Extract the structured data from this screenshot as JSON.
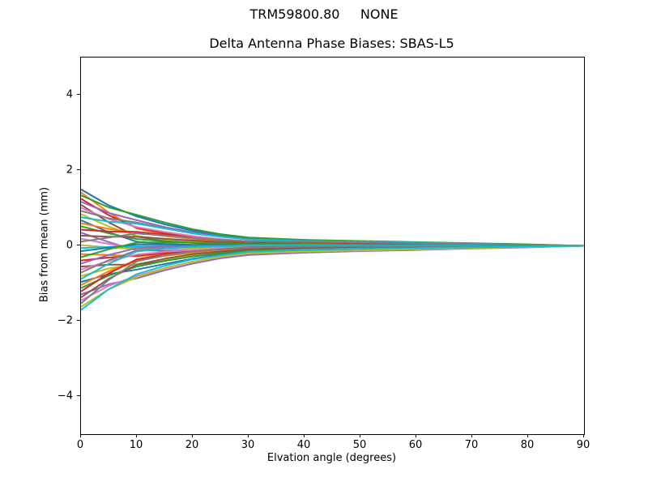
{
  "chart_data": {
    "type": "line",
    "suptitle": "TRM59800.80     NONE",
    "title": "Delta Antenna Phase Biases: SBAS-L5",
    "xlabel": "Elvation angle (degrees)",
    "ylabel": "Bias from mean (mm)",
    "xlim": [
      0,
      90
    ],
    "ylim": [
      -5,
      5
    ],
    "xticks": [
      0,
      10,
      20,
      30,
      40,
      50,
      60,
      70,
      80,
      90
    ],
    "yticks": [
      -4,
      -2,
      0,
      2,
      4
    ],
    "grid": false,
    "legend": "none",
    "background": "#ffffff",
    "text_color": "#000000",
    "line_width": 2,
    "palette": [
      "#1f77b4",
      "#ff7f0e",
      "#2ca02c",
      "#d62728",
      "#9467bd",
      "#8c564b",
      "#e377c2",
      "#7f7f7f",
      "#bcbd22",
      "#17becf"
    ],
    "x": [
      0,
      5,
      10,
      15,
      20,
      25,
      30,
      40,
      50,
      60,
      70,
      80,
      90
    ],
    "series": [
      {
        "color": "#1f77b4",
        "values": [
          1.5,
          1.07,
          0.78,
          0.57,
          0.4,
          0.28,
          0.19,
          0.12,
          0.12,
          0.08,
          0.05,
          0.02,
          0
        ]
      },
      {
        "color": "#ff7f0e",
        "values": [
          1.42,
          0.88,
          0.46,
          0.3,
          0.2,
          0.12,
          0.07,
          0.04,
          0.03,
          0.02,
          0.02,
          0.01,
          0
        ]
      },
      {
        "color": "#2ca02c",
        "values": [
          1.34,
          1.02,
          0.82,
          0.62,
          0.44,
          0.31,
          0.22,
          0.16,
          0.13,
          0.1,
          0.07,
          0.04,
          0
        ]
      },
      {
        "color": "#d62728",
        "values": [
          1.25,
          0.81,
          0.48,
          0.33,
          0.22,
          0.15,
          0.09,
          0.05,
          0.04,
          0.03,
          0.02,
          0.01,
          0
        ]
      },
      {
        "color": "#9467bd",
        "values": [
          1.17,
          0.87,
          0.68,
          0.5,
          0.36,
          0.25,
          0.17,
          0.11,
          0.08,
          0.07,
          0.05,
          0.02,
          0
        ]
      },
      {
        "color": "#8c564b",
        "values": [
          1.09,
          0.62,
          0.24,
          0.14,
          0.08,
          0.04,
          0.01,
          0.0,
          0.0,
          0.0,
          0.0,
          0.0,
          0
        ]
      },
      {
        "color": "#e377c2",
        "values": [
          1.01,
          0.71,
          0.5,
          0.37,
          0.26,
          0.18,
          0.12,
          0.07,
          0.06,
          0.04,
          0.03,
          0.02,
          0
        ]
      },
      {
        "color": "#7f7f7f",
        "values": [
          0.93,
          0.73,
          0.62,
          0.47,
          0.33,
          0.24,
          0.17,
          0.11,
          0.11,
          0.06,
          0.05,
          0.02,
          0
        ]
      },
      {
        "color": "#bcbd22",
        "values": [
          0.84,
          0.51,
          0.26,
          0.17,
          0.11,
          0.07,
          0.04,
          0.02,
          0.01,
          0.01,
          0.01,
          0.0,
          0
        ]
      },
      {
        "color": "#17becf",
        "values": [
          0.76,
          0.64,
          0.59,
          0.46,
          0.33,
          0.24,
          0.17,
          0.13,
          0.11,
          0.09,
          0.06,
          0.03,
          0
        ]
      },
      {
        "color": "#1f77b4",
        "values": [
          0.68,
          0.36,
          0.11,
          0.05,
          0.02,
          0.0,
          -0.01,
          -0.01,
          -0.01,
          -0.01,
          -0.01,
          0.0,
          0
        ]
      },
      {
        "color": "#ff7f0e",
        "values": [
          0.6,
          0.45,
          0.35,
          0.26,
          0.18,
          0.13,
          0.09,
          0.06,
          0.04,
          0.03,
          0.02,
          0.01,
          0
        ]
      },
      {
        "color": "#2ca02c",
        "values": [
          0.52,
          0.33,
          0.18,
          0.12,
          0.08,
          0.05,
          0.03,
          0.02,
          0.01,
          0.01,
          0.01,
          0.0,
          0
        ]
      },
      {
        "color": "#d62728",
        "values": [
          0.43,
          0.38,
          0.37,
          0.29,
          0.21,
          0.15,
          0.11,
          0.1,
          0.08,
          0.06,
          0.04,
          0.02,
          0
        ]
      },
      {
        "color": "#9467bd",
        "values": [
          0.35,
          0.1,
          -0.12,
          -0.13,
          -0.11,
          -0.09,
          -0.07,
          -0.05,
          -0.04,
          -0.03,
          -0.02,
          -0.01,
          0
        ]
      },
      {
        "color": "#8c564b",
        "values": [
          0.27,
          0.24,
          0.24,
          0.19,
          0.14,
          0.1,
          0.07,
          0.05,
          0.04,
          0.03,
          0.02,
          0.01,
          0
        ]
      },
      {
        "color": "#e377c2",
        "values": [
          0.19,
          0.05,
          -0.06,
          -0.07,
          -0.06,
          -0.05,
          -0.04,
          -0.03,
          -0.02,
          -0.02,
          -0.01,
          -0.01,
          0
        ]
      },
      {
        "color": "#7f7f7f",
        "values": [
          0.11,
          0.22,
          0.33,
          0.27,
          0.21,
          0.16,
          0.12,
          0.11,
          0.09,
          0.07,
          0.05,
          0.03,
          0
        ]
      },
      {
        "color": "#bcbd22",
        "values": [
          0.02,
          -0.04,
          -0.09,
          -0.08,
          -0.06,
          -0.05,
          -0.04,
          -0.03,
          -0.02,
          -0.02,
          -0.01,
          -0.01,
          0
        ]
      },
      {
        "color": "#17becf",
        "values": [
          -0.06,
          -0.03,
          -0.01,
          0.0,
          0.0,
          0.0,
          0.0,
          0.0,
          0.0,
          0.0,
          0.0,
          0.0,
          0
        ]
      },
      {
        "color": "#1f77b4",
        "values": [
          -0.14,
          -0.05,
          0.04,
          0.04,
          0.03,
          0.03,
          0.02,
          0.02,
          0.02,
          0.01,
          0.01,
          0.0,
          0
        ]
      },
      {
        "color": "#ff7f0e",
        "values": [
          -0.22,
          -0.24,
          -0.28,
          -0.22,
          -0.17,
          -0.12,
          -0.09,
          -0.06,
          -0.05,
          -0.04,
          -0.03,
          -0.01,
          0
        ]
      },
      {
        "color": "#2ca02c",
        "values": [
          -0.3,
          -0.09,
          0.09,
          0.09,
          0.08,
          0.07,
          0.05,
          0.04,
          0.03,
          0.02,
          0.02,
          0.01,
          0
        ]
      },
      {
        "color": "#d62728",
        "values": [
          -0.39,
          -0.31,
          -0.26,
          -0.19,
          -0.14,
          -0.1,
          -0.07,
          -0.05,
          -0.03,
          -0.03,
          -0.02,
          -0.01,
          0
        ]
      },
      {
        "color": "#9467bd",
        "values": [
          -0.47,
          -0.24,
          -0.06,
          -0.02,
          0.0,
          0.0,
          0.01,
          0.01,
          0.01,
          0.01,
          0.01,
          0.0,
          0
        ]
      },
      {
        "color": "#8c564b",
        "values": [
          -0.55,
          -0.5,
          -0.5,
          -0.39,
          -0.28,
          -0.21,
          -0.15,
          -0.13,
          -0.11,
          -0.08,
          -0.05,
          -0.03,
          0
        ]
      },
      {
        "color": "#e377c2",
        "values": [
          -0.63,
          -0.4,
          -0.23,
          -0.16,
          -0.11,
          -0.07,
          -0.04,
          -0.02,
          -0.02,
          -0.01,
          -0.01,
          0.0,
          0
        ]
      },
      {
        "color": "#7f7f7f",
        "values": [
          -0.71,
          -0.38,
          -0.12,
          -0.06,
          -0.03,
          -0.01,
          0.0,
          0.01,
          0.01,
          0.01,
          0.0,
          0.0,
          0
        ]
      },
      {
        "color": "#bcbd22",
        "values": [
          -0.8,
          -0.6,
          -0.48,
          -0.36,
          -0.25,
          -0.18,
          -0.13,
          -0.08,
          -0.06,
          -0.05,
          -0.03,
          -0.02,
          0
        ]
      },
      {
        "color": "#17becf",
        "values": [
          -0.88,
          -0.47,
          -0.15,
          -0.07,
          -0.03,
          -0.01,
          0.01,
          0.02,
          0.01,
          0.01,
          0.01,
          0.0,
          0
        ]
      },
      {
        "color": "#1f77b4",
        "values": [
          -0.96,
          -0.75,
          -0.63,
          -0.48,
          -0.34,
          -0.24,
          -0.17,
          -0.14,
          -0.11,
          -0.08,
          -0.06,
          -0.03,
          0
        ]
      },
      {
        "color": "#ff7f0e",
        "values": [
          -1.04,
          -0.67,
          -0.39,
          -0.27,
          -0.18,
          -0.12,
          -0.07,
          -0.04,
          -0.03,
          -0.02,
          -0.02,
          -0.01,
          0
        ]
      },
      {
        "color": "#2ca02c",
        "values": [
          -1.12,
          -0.79,
          -0.55,
          -0.4,
          -0.28,
          -0.19,
          -0.13,
          -0.08,
          -0.06,
          -0.05,
          -0.03,
          -0.02,
          0
        ]
      },
      {
        "color": "#d62728",
        "values": [
          -1.21,
          -0.73,
          -0.36,
          -0.23,
          -0.15,
          -0.09,
          -0.05,
          -0.02,
          -0.02,
          -0.01,
          -0.01,
          0.0,
          0
        ]
      },
      {
        "color": "#9467bd",
        "values": [
          -1.29,
          -1.02,
          -0.86,
          -0.65,
          -0.47,
          -0.33,
          -0.24,
          -0.18,
          -0.14,
          -0.11,
          -0.07,
          -0.04,
          0
        ]
      },
      {
        "color": "#8c564b",
        "values": [
          -1.37,
          -0.87,
          -0.5,
          -0.34,
          -0.22,
          -0.15,
          -0.09,
          -0.05,
          -0.04,
          -0.03,
          -0.02,
          -0.01,
          0
        ]
      },
      {
        "color": "#e377c2",
        "values": [
          -1.45,
          -1.06,
          -0.8,
          -0.59,
          -0.42,
          -0.29,
          -0.2,
          -0.15,
          -0.12,
          -0.09,
          -0.06,
          -0.03,
          0
        ]
      },
      {
        "color": "#7f7f7f",
        "values": [
          -1.53,
          -0.9,
          -0.41,
          -0.25,
          -0.15,
          -0.09,
          -0.05,
          -0.02,
          -0.01,
          -0.01,
          -0.01,
          0.0,
          0
        ]
      },
      {
        "color": "#bcbd22",
        "values": [
          -1.62,
          -1.15,
          -0.83,
          -0.6,
          -0.42,
          -0.29,
          -0.2,
          -0.15,
          -0.12,
          -0.09,
          -0.06,
          -0.03,
          0
        ]
      },
      {
        "color": "#17becf",
        "values": [
          -1.7,
          -1.15,
          -0.75,
          -0.53,
          -0.36,
          -0.25,
          -0.16,
          -0.1,
          -0.07,
          -0.06,
          -0.04,
          -0.02,
          0
        ]
      }
    ]
  }
}
